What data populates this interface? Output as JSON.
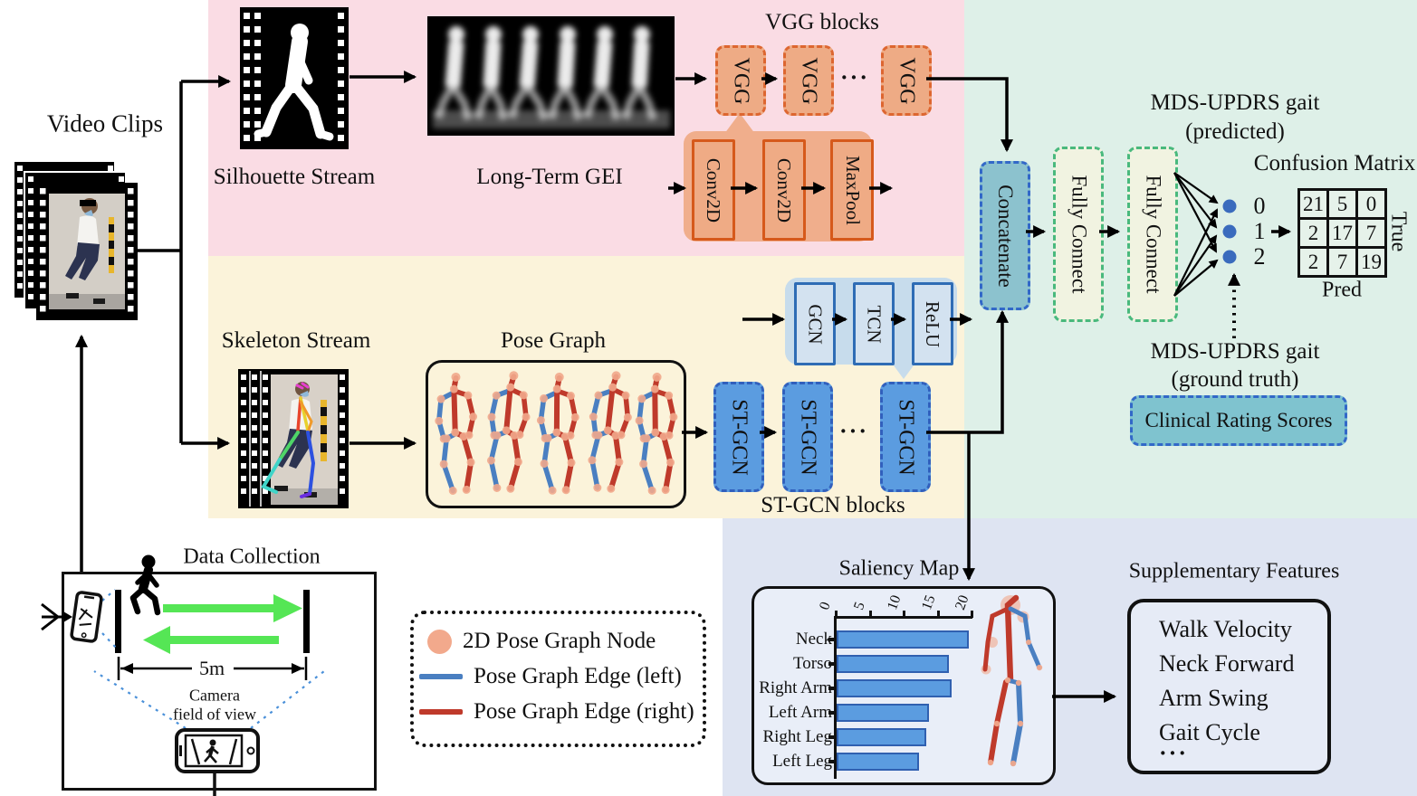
{
  "video_clips": {
    "label": "Video Clips"
  },
  "silhouette": {
    "label": "Silhouette Stream"
  },
  "gei": {
    "label": "Long-Term GEI"
  },
  "vgg": {
    "title": "VGG blocks",
    "blocks": [
      "VGG",
      "VGG",
      "VGG"
    ],
    "ellipsis": "···",
    "detail": [
      "Conv2D",
      "Conv2D",
      "MaxPool"
    ]
  },
  "skeleton": {
    "label": "Skeleton Stream"
  },
  "pose_graph": {
    "label": "Pose Graph"
  },
  "stgcn": {
    "title": "ST-GCN blocks",
    "blocks": [
      "ST-GCN",
      "ST-GCN",
      "ST-GCN"
    ],
    "ellipsis": "···",
    "detail": [
      "GCN",
      "TCN",
      "ReLU"
    ]
  },
  "fusion": {
    "concatenate": "Concatenate",
    "fully_connect_1": "Fully Connect",
    "fully_connect_2": "Fully Connect"
  },
  "prediction": {
    "line1": "MDS-UPDRS gait",
    "line2": "(predicted)",
    "classes": [
      "0",
      "1",
      "2"
    ]
  },
  "confusion": {
    "title": "Confusion Matrix",
    "rows": [
      [
        "21",
        "5",
        "0"
      ],
      [
        "2",
        "17",
        "7"
      ],
      [
        "2",
        "7",
        "19"
      ]
    ],
    "axis_true": "True",
    "axis_pred": "Pred"
  },
  "ground_truth": {
    "line1": "MDS-UPDRS gait",
    "line2": "(ground truth)",
    "clinical_box": "Clinical Rating Scores"
  },
  "chart_data": {
    "type": "bar",
    "orientation": "horizontal",
    "title": "Saliency Map",
    "categories": [
      "Neck",
      "Torso",
      "Right Arm",
      "Left Arm",
      "Right Leg",
      "Left Leg"
    ],
    "values": [
      19.5,
      16.5,
      16.9,
      13.6,
      13.2,
      12.1
    ],
    "xlim": [
      0,
      20
    ],
    "xticks": [
      0,
      5,
      10,
      15,
      20
    ],
    "bar_color": "#5b9ce0",
    "grid": false,
    "legend": false
  },
  "supplementary": {
    "title": "Supplementary Features",
    "items": [
      "Walk Velocity",
      "Neck Forward",
      "Arm Swing",
      "Gait Cycle",
      "···"
    ]
  },
  "legend": {
    "items": [
      {
        "swatch": "pose-node",
        "label": "2D Pose Graph Node"
      },
      {
        "swatch": "edge-left",
        "label": "Pose Graph Edge (left)"
      },
      {
        "swatch": "edge-right",
        "label": "Pose Graph Edge (right)"
      }
    ]
  },
  "data_collection": {
    "title": "Data Collection",
    "distance": "5m",
    "fov_line1": "Camera",
    "fov_line2": "field of view"
  },
  "colors": {
    "pink": "#fadce4",
    "cream": "#fbf3da",
    "mint": "#def0e8",
    "lavender": "#dee4f2",
    "vgg_fill": "#eeab85",
    "vgg_border": "#dd6630",
    "stgcn_fill": "#5b9ce0",
    "stgcn_border": "#3160bd",
    "concat_fill": "#8cc2ce",
    "dash_blue": "#3268c8",
    "fc_fill": "#f1f3e1",
    "fc_border": "#49b97d",
    "clinical_fill": "#7fc3cf",
    "pose_node": "#f2a98c",
    "edge_left": "#4a7fc1",
    "edge_right": "#bf3a2b",
    "bar": "#5b9ce0",
    "green_arrow": "#55e655",
    "class_dot": "#3a6bbd"
  }
}
